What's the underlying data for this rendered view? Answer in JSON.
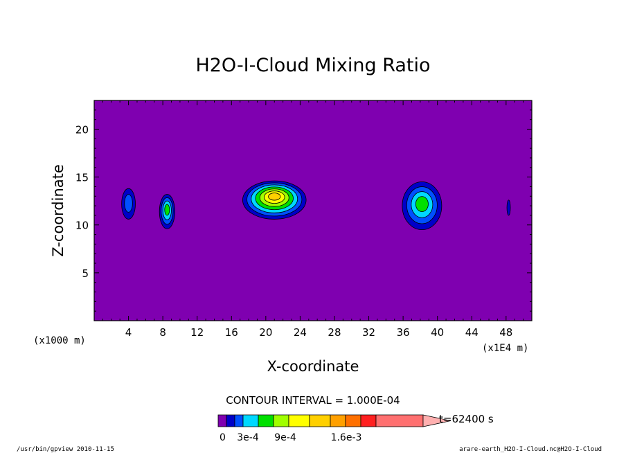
{
  "chart_data": {
    "type": "contour",
    "title": "H2O-I-Cloud Mixing Ratio",
    "xlabel": "X-coordinate",
    "ylabel": "Z-coordinate",
    "x_unit_note": "(x1E4 m)",
    "y_unit_note": "(x1000 m)",
    "xlim": [
      0,
      51
    ],
    "ylim": [
      0,
      23
    ],
    "x_ticks": [
      4,
      8,
      12,
      16,
      20,
      24,
      28,
      32,
      36,
      40,
      44,
      48
    ],
    "y_ticks": [
      5,
      10,
      15,
      20
    ],
    "x_tick_labels": [
      "4",
      "8",
      "12",
      "16",
      "20",
      "24",
      "28",
      "32",
      "36",
      "40",
      "44",
      "48"
    ],
    "y_tick_labels": [
      "5",
      "10",
      "15",
      "20"
    ],
    "contour_interval_text": "CONTOUR INTERVAL = 1.000E-04",
    "time_text": "t=62400 s",
    "colorbar": {
      "colors": [
        "#7f00b0",
        "#0000c8",
        "#0050ff",
        "#00d8ff",
        "#00e000",
        "#a0ff00",
        "#ffff00",
        "#ffd000",
        "#ffa000",
        "#ff7000",
        "#ff2020",
        "#ff7070",
        "#ffb0b0"
      ],
      "labels": [
        "0",
        "3e-4",
        "9e-4",
        "1.6e-3"
      ],
      "label_levels": [
        0,
        3,
        9,
        16
      ],
      "levels_total": 20
    },
    "background_color": "#7f00b0",
    "features": [
      {
        "x": 4.0,
        "z": 12.2,
        "rx": 0.8,
        "rz": 1.6,
        "levels": [
          "#0000c8",
          "#0050ff"
        ]
      },
      {
        "x": 8.5,
        "z": 11.4,
        "rx": 0.9,
        "rz": 1.8,
        "levels": [
          "#0000c8",
          "#0050ff",
          "#00d8ff",
          "#00e000"
        ]
      },
      {
        "x": 21.0,
        "z": 12.6,
        "rx": 3.7,
        "rz": 2.0,
        "levels": [
          "#0000c8",
          "#0050ff",
          "#00d8ff",
          "#00e000",
          "#a0ff00",
          "#ffff00",
          "#ffd000"
        ]
      },
      {
        "x": 38.2,
        "z": 12.0,
        "rx": 2.3,
        "rz": 2.5,
        "levels": [
          "#0000c8",
          "#0050ff",
          "#00d8ff",
          "#00e000"
        ]
      },
      {
        "x": 48.3,
        "z": 11.8,
        "rx": 0.2,
        "rz": 0.8,
        "levels": [
          "#0000c8"
        ]
      }
    ],
    "footer_left": "/usr/bin/gpview  2010-11-15",
    "footer_right": "arare-earth_H2O-I-Cloud.nc@H2O-I-Cloud"
  }
}
